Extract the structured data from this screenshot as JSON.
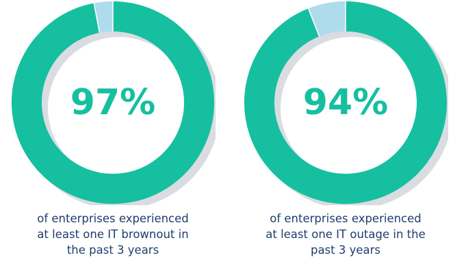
{
  "colors": {
    "main": "#16bfa0",
    "remainder": "#aedcec",
    "shadow": "#d9dde1",
    "caption": "#1f3d6b"
  },
  "chart_data": [
    {
      "type": "pie",
      "style": "donut",
      "value": 97,
      "center_label": "97%",
      "caption_lines": [
        "of enterprises experienced",
        "at least one IT brownout in",
        "the past 3 years"
      ]
    },
    {
      "type": "pie",
      "style": "donut",
      "value": 94,
      "center_label": "94%",
      "caption_lines": [
        "of enterprises experienced",
        "at least one IT outage in the",
        "past 3 years"
      ]
    }
  ]
}
